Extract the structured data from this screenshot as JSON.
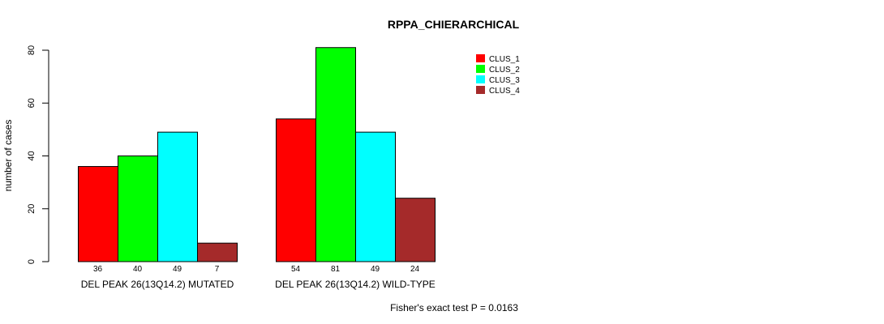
{
  "chart_data": {
    "type": "bar",
    "title": "RPPA_CHIERARCHICAL",
    "xlabel": "",
    "ylabel": "number of cases",
    "ylim": [
      0,
      80
    ],
    "yticks": [
      0,
      20,
      40,
      60,
      80
    ],
    "categories": [
      "DEL PEAK 26(13Q14.2) MUTATED",
      "DEL PEAK 26(13Q14.2) WILD-TYPE"
    ],
    "series": [
      {
        "name": "CLUS_1",
        "color": "#ff0000",
        "values": [
          36,
          54
        ]
      },
      {
        "name": "CLUS_2",
        "color": "#00ff00",
        "values": [
          40,
          81
        ]
      },
      {
        "name": "CLUS_3",
        "color": "#00ffff",
        "values": [
          49,
          49
        ]
      },
      {
        "name": "CLUS_4",
        "color": "#a52a2a",
        "values": [
          7,
          24
        ]
      }
    ],
    "legend_position": "top-right",
    "grid": false,
    "note": "Fisher's exact test P = 0.0163"
  }
}
